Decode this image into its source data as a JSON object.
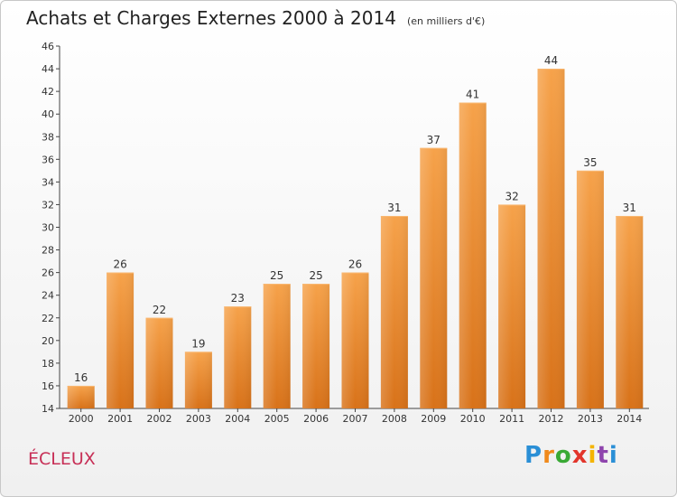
{
  "title": "Achats et Charges Externes 2000 à 2014",
  "unit": "(en milliers d'€)",
  "commune": "ÉCLEUX",
  "brand": {
    "letters": [
      "P",
      "r",
      "o",
      "x",
      "i",
      "t",
      "i"
    ]
  },
  "colors": {
    "bar": "#f0932e",
    "bar_dark": "#d9741c",
    "commune": "#c72f56"
  },
  "chart_data": {
    "type": "bar",
    "categories": [
      "2000",
      "2001",
      "2002",
      "2003",
      "2004",
      "2005",
      "2006",
      "2007",
      "2008",
      "2009",
      "2010",
      "2011",
      "2012",
      "2013",
      "2014"
    ],
    "values": [
      16,
      26,
      22,
      19,
      23,
      25,
      25,
      26,
      31,
      37,
      41,
      32,
      44,
      35,
      31
    ],
    "title": "Achats et Charges Externes 2000 à 2014",
    "subtitle": "(en milliers d'€)",
    "xlabel": "",
    "ylabel": "",
    "ylim": [
      14,
      46
    ],
    "yticks": [
      14,
      16,
      18,
      20,
      22,
      24,
      26,
      28,
      30,
      32,
      34,
      36,
      38,
      40,
      42,
      44,
      46
    ],
    "grid": false,
    "legend": "none"
  }
}
